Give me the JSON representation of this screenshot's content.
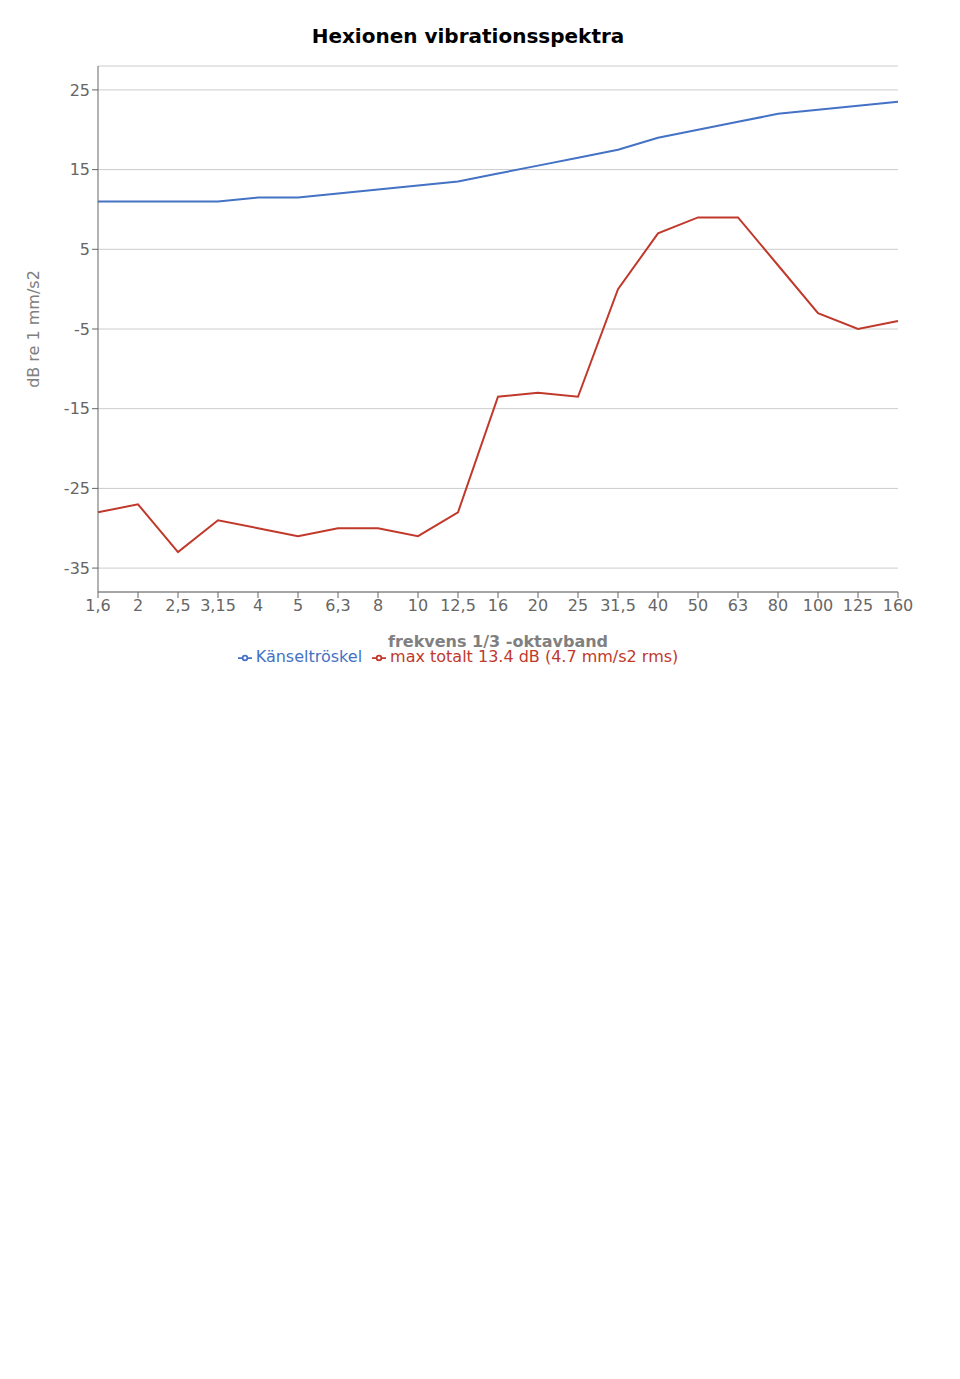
{
  "chart_data": {
    "type": "line",
    "title": "Hexionen vibrationsspektra",
    "x_label": "frekvens 1/3 -oktavband",
    "y_label": "dB re 1 mm/s2",
    "categories": [
      "1,6",
      "2",
      "2,5",
      "3,15",
      "4",
      "5",
      "6,3",
      "8",
      "10",
      "12,5",
      "16",
      "20",
      "25",
      "31,5",
      "40",
      "50",
      "63",
      "80",
      "100",
      "125",
      "160"
    ],
    "series": [
      {
        "name": "max totalt 13.4 dB (4.7 mm/s2 rms)",
        "color": "#c0392b",
        "values": [
          -28,
          -27,
          -33,
          -29,
          -30,
          -31,
          -30,
          -30,
          -31,
          -28,
          -13.5,
          -13,
          -13.5,
          0,
          7,
          9,
          9,
          3,
          -3,
          -5,
          -4
        ]
      },
      {
        "name": "Känseltröskel",
        "color": "#4472c4",
        "values": [
          11,
          11,
          11,
          11,
          11.5,
          11.5,
          12,
          12.5,
          13,
          13.5,
          14.5,
          15.5,
          16.5,
          17.5,
          19,
          20,
          21,
          22,
          22.5,
          23,
          23.5
        ]
      }
    ],
    "ylim": [
      -38,
      28
    ],
    "yticks": [
      -35,
      -25,
      -15,
      -5,
      5,
      15,
      25
    ],
    "grid": true,
    "legend": "bottom"
  }
}
